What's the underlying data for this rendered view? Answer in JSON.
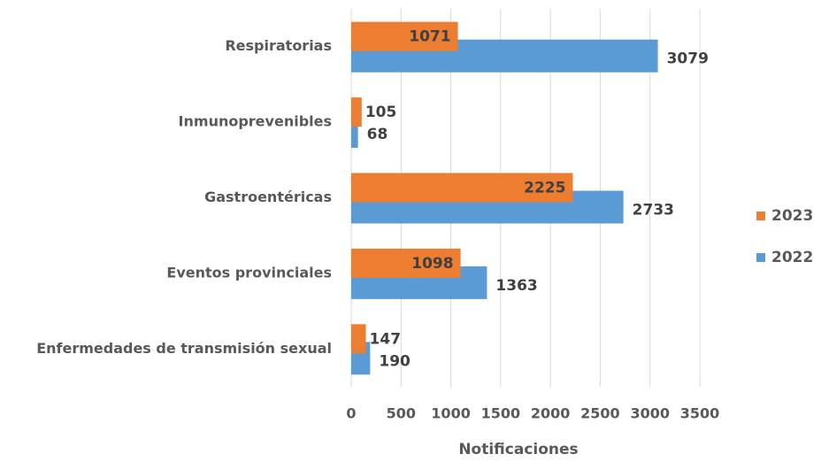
{
  "chart_data": {
    "type": "bar",
    "orientation": "horizontal",
    "categories": [
      "Respiratorias",
      "Inmunoprevenibles",
      "Gastroentéricas",
      "Eventos provinciales",
      "Enfermedades de transmisión sexual"
    ],
    "series": [
      {
        "name": "2023",
        "color": "#ed7d31",
        "values": [
          1071,
          105,
          2225,
          1098,
          147
        ]
      },
      {
        "name": "2022",
        "color": "#5b9bd5",
        "values": [
          3079,
          68,
          2733,
          1363,
          190
        ]
      }
    ],
    "xlabel": "Notificaciones",
    "xlim": [
      0,
      3500
    ],
    "xticks": [
      0,
      500,
      1000,
      1500,
      2000,
      2500,
      3000,
      3500
    ],
    "grid": true,
    "legend": "right"
  }
}
